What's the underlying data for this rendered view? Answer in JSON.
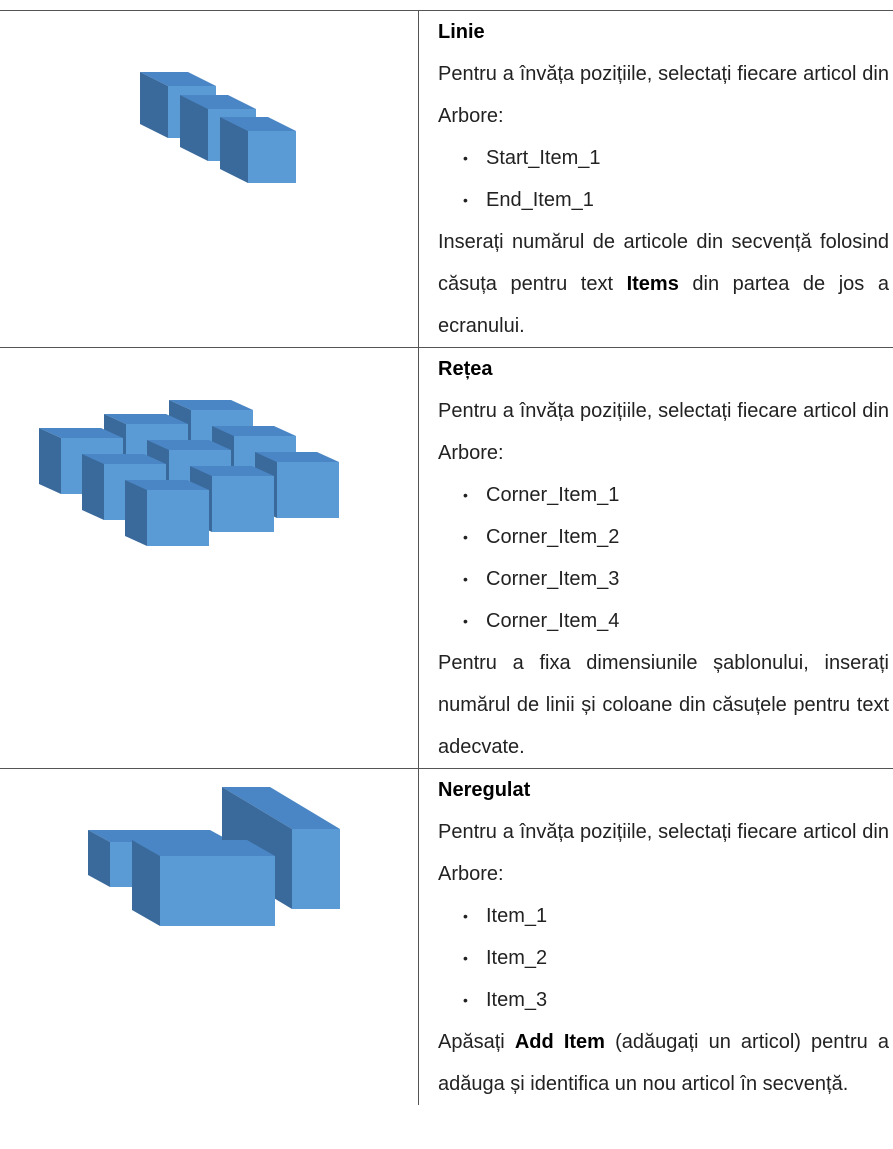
{
  "rows": [
    {
      "title": "Linie",
      "intro": "Pentru a învăța pozițiile, selectați fiecare articol din Arbore:",
      "items": [
        "Start_Item_1",
        "End_Item_1"
      ],
      "outro": [
        {
          "text": "Inserați numărul de articole din secvență folosind căsuța pentru text ",
          "bold": false
        },
        {
          "text": "Items",
          "bold": true
        },
        {
          "text": " din partea de jos a ecranului.",
          "bold": false
        }
      ]
    },
    {
      "title": "Rețea",
      "intro": "Pentru a învăța pozițiile, selectați fiecare articol din Arbore:",
      "items": [
        "Corner_Item_1",
        "Corner_Item_2",
        "Corner_Item_3",
        "Corner_Item_4"
      ],
      "outro": [
        {
          "text": "Pentru a fixa dimensiunile șablonului, inserați numărul de linii și coloane din căsuțele pentru text adecvate.",
          "bold": false
        }
      ]
    },
    {
      "title": "Neregulat",
      "intro": "Pentru a învăța pozițiile, selectați fiecare articol din Arbore:",
      "items": [
        "Item_1",
        "Item_2",
        "Item_3"
      ],
      "outro": [
        {
          "text": "Apăsați ",
          "bold": false
        },
        {
          "text": "Add Item",
          "bold": true
        },
        {
          "text": " (adăugați un articol) pentru a adăuga și identifica un nou articol în secvență.",
          "bold": false
        }
      ]
    }
  ]
}
